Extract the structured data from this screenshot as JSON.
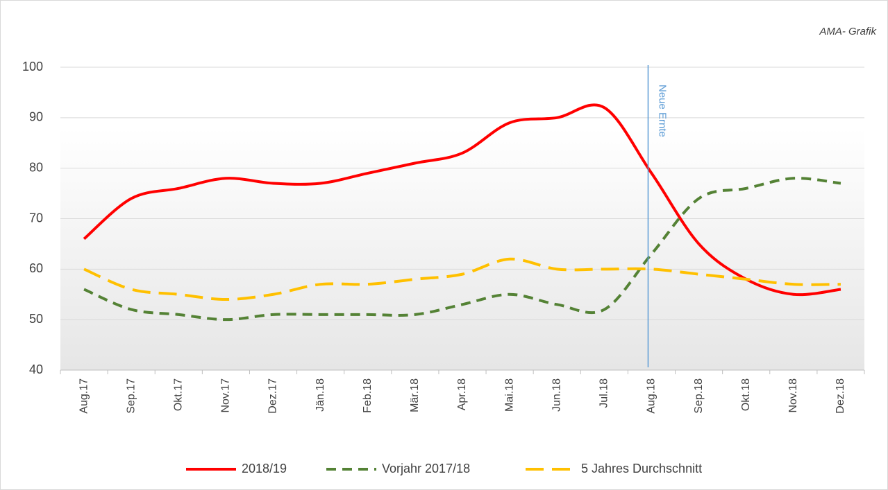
{
  "chart_data": {
    "type": "line",
    "source": "AMA- Grafik",
    "categories": [
      "Aug.17",
      "Sep.17",
      "Okt.17",
      "Nov.17",
      "Dez.17",
      "Jän.18",
      "Feb.18",
      "Mär.18",
      "Apr.18",
      "Mai.18",
      "Jun.18",
      "Jul.18",
      "Aug.18",
      "Sep.18",
      "Okt.18",
      "Nov.18",
      "Dez.18"
    ],
    "series": [
      {
        "name": "2018/19",
        "color": "#ff0000",
        "dash": "solid",
        "values": [
          66,
          74,
          76,
          78,
          77,
          77,
          79,
          81,
          83,
          89,
          90,
          92,
          79,
          65,
          58,
          55,
          56
        ]
      },
      {
        "name": "Vorjahr 2017/18",
        "color": "#548235",
        "dash": "dashed",
        "values": [
          56,
          52,
          51,
          50,
          51,
          51,
          51,
          51,
          53,
          55,
          53,
          52,
          63,
          74,
          76,
          78,
          77
        ]
      },
      {
        "name": "5 Jahres Durchschnitt",
        "color": "#ffc000",
        "dash": "long-dashed",
        "values": [
          60,
          56,
          55,
          54,
          55,
          57,
          57,
          58,
          59,
          62,
          60,
          60,
          60,
          59,
          58,
          57,
          57
        ]
      }
    ],
    "annotations": [
      {
        "text": "Neue Ernte",
        "x": "Aug.18",
        "color": "#5b9bd5"
      }
    ],
    "ylim": [
      40,
      100
    ],
    "yticks": [
      40,
      50,
      60,
      70,
      80,
      90,
      100
    ],
    "grid": true,
    "smooth": true,
    "legend": "bottom"
  }
}
